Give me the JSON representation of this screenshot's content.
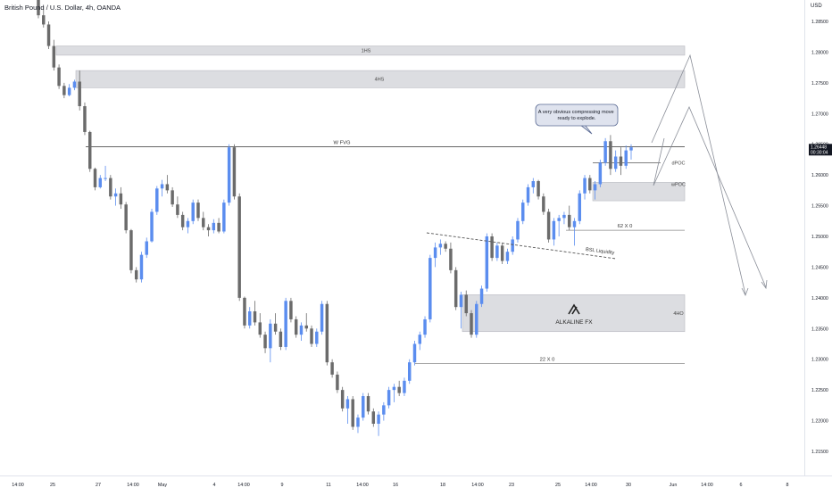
{
  "header": {
    "title": "British Pound / U.S. Dollar, 4h, OANDA",
    "currency": "USD"
  },
  "chart_data": {
    "type": "candlestick",
    "title": "British Pound / U.S. Dollar, 4h, OANDA",
    "y_axis": {
      "ticks": [
        "1.28500",
        "1.28000",
        "1.27500",
        "1.27000",
        "1.26500",
        "1.26000",
        "1.25500",
        "1.25000",
        "1.24500",
        "1.24000",
        "1.23500",
        "1.23000",
        "1.22500",
        "1.22000",
        "1.21500"
      ],
      "ylim": [
        1.2125,
        1.29
      ]
    },
    "x_axis": {
      "ticks": [
        "14:00",
        "25",
        "27",
        "14:00",
        "May",
        "4",
        "14:00",
        "9",
        "11",
        "14:00",
        "16",
        "18",
        "14:00",
        "23",
        "25",
        "14:00",
        "30",
        "Jun",
        "14:00",
        "6",
        "8"
      ]
    },
    "last_price": {
      "value": "1.26448",
      "countdown": "00:30:04",
      "color": "#131722"
    },
    "candles": [
      [
        1.289,
        1.29,
        1.2855,
        1.286
      ],
      [
        1.286,
        1.2875,
        1.284,
        1.2845
      ],
      [
        1.2845,
        1.285,
        1.2805,
        1.281
      ],
      [
        1.281,
        1.282,
        1.277,
        1.2775
      ],
      [
        1.2775,
        1.278,
        1.274,
        1.2745
      ],
      [
        1.2745,
        1.275,
        1.2725,
        1.273
      ],
      [
        1.273,
        1.2748,
        1.2728,
        1.2742
      ],
      [
        1.2742,
        1.2755,
        1.2738,
        1.2752
      ],
      [
        1.2752,
        1.277,
        1.2705,
        1.2712
      ],
      [
        1.2712,
        1.2718,
        1.2665,
        1.267
      ],
      [
        1.267,
        1.2672,
        1.2605,
        1.261
      ],
      [
        1.261,
        1.2612,
        1.2575,
        1.258
      ],
      [
        1.258,
        1.26,
        1.2578,
        1.2595
      ],
      [
        1.2595,
        1.2615,
        1.259,
        1.2595
      ],
      [
        1.2595,
        1.26,
        1.256,
        1.2565
      ],
      [
        1.2565,
        1.2578,
        1.255,
        1.257
      ],
      [
        1.257,
        1.258,
        1.2545,
        1.2552
      ],
      [
        1.2552,
        1.2556,
        1.2505,
        1.251
      ],
      [
        1.251,
        1.2512,
        1.244,
        1.2445
      ],
      [
        1.2445,
        1.245,
        1.2425,
        1.243
      ],
      [
        1.243,
        1.2475,
        1.2425,
        1.247
      ],
      [
        1.247,
        1.2498,
        1.2465,
        1.2492
      ],
      [
        1.2492,
        1.2545,
        1.249,
        1.254
      ],
      [
        1.254,
        1.2582,
        1.2535,
        1.2578
      ],
      [
        1.2578,
        1.2592,
        1.2565,
        1.2585
      ],
      [
        1.2585,
        1.26,
        1.257,
        1.2575
      ],
      [
        1.2575,
        1.258,
        1.2548,
        1.2552
      ],
      [
        1.2552,
        1.2565,
        1.253,
        1.2535
      ],
      [
        1.2535,
        1.254,
        1.251,
        1.2515
      ],
      [
        1.2515,
        1.253,
        1.2505,
        1.2525
      ],
      [
        1.2525,
        1.256,
        1.252,
        1.2555
      ],
      [
        1.2555,
        1.256,
        1.2525,
        1.253
      ],
      [
        1.253,
        1.254,
        1.251,
        1.2515
      ],
      [
        1.2515,
        1.252,
        1.25,
        1.251
      ],
      [
        1.251,
        1.2528,
        1.2505,
        1.2522
      ],
      [
        1.2522,
        1.253,
        1.2505,
        1.2508
      ],
      [
        1.2508,
        1.256,
        1.2505,
        1.2555
      ],
      [
        1.2555,
        1.265,
        1.255,
        1.2645
      ],
      [
        1.2645,
        1.265,
        1.256,
        1.2565
      ],
      [
        1.2565,
        1.257,
        1.2395,
        1.24
      ],
      [
        1.24,
        1.2402,
        1.235,
        1.2355
      ],
      [
        1.2355,
        1.2385,
        1.235,
        1.2378
      ],
      [
        1.2378,
        1.2395,
        1.2355,
        1.236
      ],
      [
        1.236,
        1.2375,
        1.2335,
        1.234
      ],
      [
        1.234,
        1.2345,
        1.231,
        1.2318
      ],
      [
        1.2318,
        1.2365,
        1.2295,
        1.2358
      ],
      [
        1.2358,
        1.2375,
        1.234,
        1.2345
      ],
      [
        1.2345,
        1.235,
        1.2315,
        1.232
      ],
      [
        1.232,
        1.24,
        1.2315,
        1.2395
      ],
      [
        1.2395,
        1.24,
        1.236,
        1.2365
      ],
      [
        1.2365,
        1.237,
        1.2335,
        1.234
      ],
      [
        1.234,
        1.236,
        1.233,
        1.2355
      ],
      [
        1.2355,
        1.2375,
        1.2345,
        1.235
      ],
      [
        1.235,
        1.2355,
        1.232,
        1.2325
      ],
      [
        1.2325,
        1.235,
        1.232,
        1.2345
      ],
      [
        1.2345,
        1.2395,
        1.234,
        1.239
      ],
      [
        1.239,
        1.2395,
        1.229,
        1.2295
      ],
      [
        1.2295,
        1.23,
        1.227,
        1.2275
      ],
      [
        1.2275,
        1.228,
        1.2245,
        1.225
      ],
      [
        1.225,
        1.2255,
        1.2215,
        1.222
      ],
      [
        1.222,
        1.224,
        1.2195,
        1.2235
      ],
      [
        1.2235,
        1.224,
        1.2185,
        1.219
      ],
      [
        1.219,
        1.221,
        1.218,
        1.2205
      ],
      [
        1.2205,
        1.2245,
        1.22,
        1.224
      ],
      [
        1.224,
        1.2245,
        1.221,
        1.2215
      ],
      [
        1.2215,
        1.222,
        1.219,
        1.2195
      ],
      [
        1.2195,
        1.2215,
        1.2175,
        1.221
      ],
      [
        1.221,
        1.223,
        1.22,
        1.2225
      ],
      [
        1.2225,
        1.2255,
        1.222,
        1.225
      ],
      [
        1.225,
        1.226,
        1.223,
        1.2255
      ],
      [
        1.2255,
        1.2265,
        1.224,
        1.2245
      ],
      [
        1.2245,
        1.227,
        1.224,
        1.2265
      ],
      [
        1.2265,
        1.23,
        1.226,
        1.2295
      ],
      [
        1.2295,
        1.233,
        1.229,
        1.2325
      ],
      [
        1.2325,
        1.2345,
        1.2315,
        1.234
      ],
      [
        1.234,
        1.237,
        1.2335,
        1.2365
      ],
      [
        1.2365,
        1.247,
        1.236,
        1.2465
      ],
      [
        1.2465,
        1.249,
        1.245,
        1.2482
      ],
      [
        1.2482,
        1.2495,
        1.247,
        1.2488
      ],
      [
        1.2488,
        1.2492,
        1.2475,
        1.248
      ],
      [
        1.248,
        1.249,
        1.244,
        1.2445
      ],
      [
        1.2445,
        1.245,
        1.238,
        1.2385
      ],
      [
        1.2385,
        1.241,
        1.235,
        1.2405
      ],
      [
        1.2405,
        1.2412,
        1.237,
        1.2375
      ],
      [
        1.2375,
        1.238,
        1.2335,
        1.234
      ],
      [
        1.234,
        1.2395,
        1.2335,
        1.239
      ],
      [
        1.239,
        1.242,
        1.2385,
        1.2415
      ],
      [
        1.2415,
        1.2505,
        1.241,
        1.25
      ],
      [
        1.25,
        1.2505,
        1.246,
        1.2465
      ],
      [
        1.2465,
        1.249,
        1.246,
        1.2485
      ],
      [
        1.2485,
        1.249,
        1.2455,
        1.246
      ],
      [
        1.246,
        1.248,
        1.2455,
        1.2475
      ],
      [
        1.2475,
        1.25,
        1.247,
        1.2495
      ],
      [
        1.2495,
        1.253,
        1.249,
        1.2525
      ],
      [
        1.2525,
        1.256,
        1.252,
        1.2555
      ],
      [
        1.2555,
        1.2585,
        1.255,
        1.258
      ],
      [
        1.258,
        1.2595,
        1.257,
        1.259
      ],
      [
        1.259,
        1.2592,
        1.256,
        1.2565
      ],
      [
        1.2565,
        1.257,
        1.2535,
        1.254
      ],
      [
        1.254,
        1.2545,
        1.249,
        1.2495
      ],
      [
        1.2495,
        1.253,
        1.2485,
        1.2525
      ],
      [
        1.2525,
        1.2535,
        1.25,
        1.253
      ],
      [
        1.253,
        1.254,
        1.252,
        1.2535
      ],
      [
        1.2535,
        1.255,
        1.251,
        1.2515
      ],
      [
        1.2515,
        1.253,
        1.2485,
        1.2525
      ],
      [
        1.2525,
        1.2575,
        1.252,
        1.257
      ],
      [
        1.257,
        1.26,
        1.256,
        1.2595
      ],
      [
        1.2595,
        1.26,
        1.257,
        1.2575
      ],
      [
        1.2575,
        1.259,
        1.256,
        1.2585
      ],
      [
        1.2585,
        1.2625,
        1.258,
        1.262
      ],
      [
        1.262,
        1.266,
        1.2615,
        1.2655
      ],
      [
        1.2655,
        1.2665,
        1.26,
        1.261
      ],
      [
        1.261,
        1.264,
        1.2605,
        1.263
      ],
      [
        1.263,
        1.2645,
        1.26,
        1.2615
      ],
      [
        1.2615,
        1.2648,
        1.261,
        1.264
      ],
      [
        1.264,
        1.265,
        1.2625,
        1.2645
      ]
    ]
  },
  "zones": {
    "zone_1h5": {
      "label": "1HS",
      "top": 1.281,
      "bottom": 1.2795
    },
    "zone_4h5": {
      "label": "4HS",
      "top": 1.277,
      "bottom": 1.2742
    },
    "zone_4h0": {
      "label": "4HO",
      "top": 1.2405,
      "bottom": 1.2345
    },
    "zone_wpoc": {
      "label": "wPOC",
      "top": 1.2588,
      "bottom": 1.2558
    },
    "zone_dpoc": {
      "label": "dPOC",
      "top": 1.262,
      "bottom": 1.2615
    }
  },
  "levels": {
    "wfvg": {
      "label": "W FVG",
      "value": 1.2646
    },
    "line_62x0": {
      "label": "62 X 0",
      "value": 1.251
    },
    "line_22x0": {
      "label": "22 X 0",
      "value": 1.2293
    }
  },
  "annotations": {
    "callout": "A very obvious compressing move ready to explode.",
    "bsl_liquidity": "BSL Liquidity",
    "watermark": "ALKALINE FX"
  },
  "colors": {
    "bull": "#5b8def",
    "bear": "#6b6b6b",
    "zone": "#dcdde1",
    "zone_border": "#b8bac0",
    "callout_bg": "#dfe3ee",
    "callout_border": "#5b6b94",
    "background": "#ffffff"
  }
}
